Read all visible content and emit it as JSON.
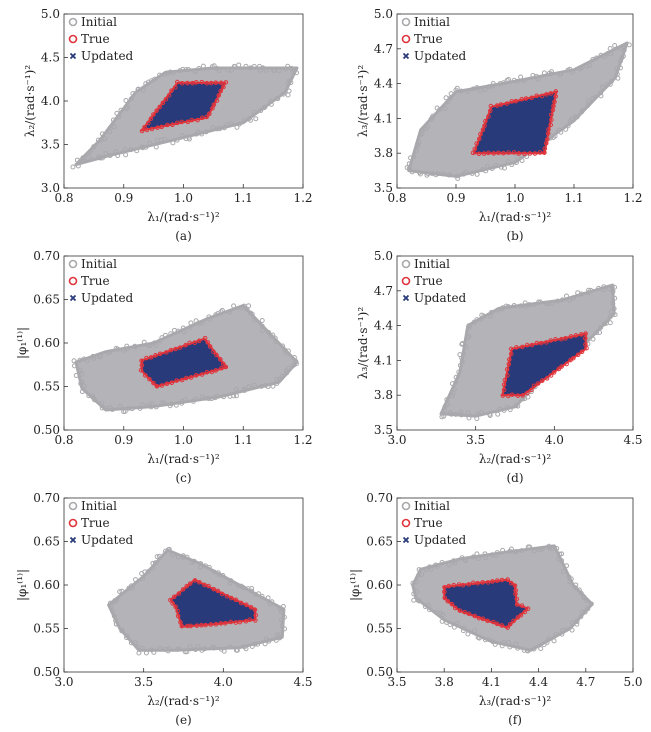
{
  "colors": {
    "initial": "#a9a9ad",
    "true": "#e0343c",
    "updated": "#283a7a",
    "axis": "#333333"
  },
  "legend": [
    "Initial",
    "True",
    "Updated"
  ],
  "chart_data": [
    {
      "type": "scatter",
      "caption": "(a)",
      "xlabel": "λ₁/(rad·s⁻¹)²",
      "ylabel": "λ₂/(rad·s⁻¹)²",
      "xlim": [
        0.8,
        1.2
      ],
      "ylim": [
        3.0,
        5.0
      ],
      "xticks": [
        0.8,
        0.9,
        1.0,
        1.1,
        1.2
      ],
      "yticks": [
        3.0,
        3.5,
        4.0,
        4.5,
        5.0
      ],
      "tick_decimals": [
        1,
        1
      ],
      "initial_region": [
        [
          0.82,
          3.27
        ],
        [
          0.86,
          3.55
        ],
        [
          0.92,
          4.1
        ],
        [
          0.97,
          4.33
        ],
        [
          1.05,
          4.38
        ],
        [
          1.19,
          4.38
        ],
        [
          1.17,
          4.1
        ],
        [
          1.1,
          3.75
        ],
        [
          1.0,
          3.58
        ],
        [
          0.88,
          3.38
        ]
      ],
      "true_region": [
        [
          0.93,
          3.66
        ],
        [
          0.99,
          4.21
        ],
        [
          1.07,
          4.21
        ],
        [
          1.04,
          3.81
        ]
      ]
    },
    {
      "type": "scatter",
      "caption": "(b)",
      "xlabel": "λ₁/(rad·s⁻¹)²",
      "ylabel": "λ₃/(rad·s⁻¹)²",
      "xlim": [
        0.8,
        1.2
      ],
      "ylim": [
        3.5,
        5.0
      ],
      "xticks": [
        0.8,
        0.9,
        1.0,
        1.1,
        1.2
      ],
      "yticks": [
        3.5,
        3.8,
        4.1,
        4.4,
        4.7,
        5.0
      ],
      "tick_decimals": [
        1,
        1
      ],
      "initial_region": [
        [
          0.82,
          3.65
        ],
        [
          0.84,
          4.0
        ],
        [
          0.9,
          4.33
        ],
        [
          1.0,
          4.42
        ],
        [
          1.1,
          4.52
        ],
        [
          1.19,
          4.75
        ],
        [
          1.17,
          4.45
        ],
        [
          1.1,
          4.08
        ],
        [
          1.0,
          3.72
        ],
        [
          0.9,
          3.6
        ]
      ],
      "true_region": [
        [
          0.93,
          3.8
        ],
        [
          0.96,
          4.2
        ],
        [
          1.07,
          4.33
        ],
        [
          1.05,
          3.8
        ]
      ]
    },
    {
      "type": "scatter",
      "caption": "(c)",
      "xlabel": "λ₁/(rad·s⁻¹)²",
      "ylabel": "|φ₁⁽¹⁾|",
      "xlim": [
        0.8,
        1.2
      ],
      "ylim": [
        0.5,
        0.7
      ],
      "xticks": [
        0.8,
        0.9,
        1.0,
        1.1,
        1.2
      ],
      "yticks": [
        0.5,
        0.55,
        0.6,
        0.65,
        0.7
      ],
      "tick_decimals": [
        1,
        2
      ],
      "initial_region": [
        [
          0.82,
          0.578
        ],
        [
          0.87,
          0.59
        ],
        [
          0.95,
          0.6
        ],
        [
          1.04,
          0.628
        ],
        [
          1.1,
          0.643
        ],
        [
          1.19,
          0.578
        ],
        [
          1.16,
          0.555
        ],
        [
          1.06,
          0.538
        ],
        [
          0.95,
          0.527
        ],
        [
          0.87,
          0.523
        ],
        [
          0.83,
          0.548
        ]
      ],
      "true_region": [
        [
          0.93,
          0.58
        ],
        [
          0.93,
          0.568
        ],
        [
          0.955,
          0.55
        ],
        [
          1.072,
          0.572
        ],
        [
          1.035,
          0.605
        ]
      ]
    },
    {
      "type": "scatter",
      "caption": "(d)",
      "xlabel": "λ₂/(rad·s⁻¹)²",
      "ylabel": "λ₃/(rad·s⁻¹)²",
      "xlim": [
        3.0,
        4.5
      ],
      "ylim": [
        3.5,
        5.0
      ],
      "xticks": [
        3.0,
        3.5,
        4.0,
        4.5
      ],
      "yticks": [
        3.5,
        3.8,
        4.1,
        4.4,
        4.7,
        5.0
      ],
      "tick_decimals": [
        1,
        1
      ],
      "initial_region": [
        [
          3.28,
          3.64
        ],
        [
          3.4,
          4.0
        ],
        [
          3.45,
          4.4
        ],
        [
          3.65,
          4.55
        ],
        [
          4.05,
          4.62
        ],
        [
          4.37,
          4.75
        ],
        [
          4.38,
          4.5
        ],
        [
          4.2,
          4.25
        ],
        [
          4.0,
          4.05
        ],
        [
          3.75,
          3.7
        ],
        [
          3.5,
          3.62
        ]
      ],
      "true_region": [
        [
          3.67,
          3.8
        ],
        [
          3.73,
          4.2
        ],
        [
          4.2,
          4.33
        ],
        [
          4.2,
          4.2
        ],
        [
          3.8,
          3.8
        ]
      ]
    },
    {
      "type": "scatter",
      "caption": "(e)",
      "xlabel": "λ₂/(rad·s⁻¹)²",
      "ylabel": "|φ₁⁽¹⁾|",
      "xlim": [
        3.0,
        4.5
      ],
      "ylim": [
        0.5,
        0.7
      ],
      "xticks": [
        3.0,
        3.5,
        4.0,
        4.5
      ],
      "yticks": [
        0.5,
        0.55,
        0.6,
        0.65,
        0.7
      ],
      "tick_decimals": [
        1,
        2
      ],
      "initial_region": [
        [
          3.28,
          0.577
        ],
        [
          3.5,
          0.61
        ],
        [
          3.65,
          0.64
        ],
        [
          3.85,
          0.625
        ],
        [
          4.1,
          0.6
        ],
        [
          4.38,
          0.572
        ],
        [
          4.37,
          0.54
        ],
        [
          4.1,
          0.528
        ],
        [
          3.7,
          0.525
        ],
        [
          3.47,
          0.525
        ],
        [
          3.35,
          0.55
        ]
      ],
      "true_region": [
        [
          3.67,
          0.583
        ],
        [
          3.82,
          0.606
        ],
        [
          4.2,
          0.572
        ],
        [
          4.2,
          0.56
        ],
        [
          3.95,
          0.555
        ],
        [
          3.74,
          0.552
        ],
        [
          3.7,
          0.575
        ]
      ]
    },
    {
      "type": "scatter",
      "caption": "(f)",
      "xlabel": "λ₃/(rad·s⁻¹)²",
      "ylabel": "|φ₁⁽¹⁾|",
      "xlim": [
        3.5,
        5.0
      ],
      "ylim": [
        0.5,
        0.7
      ],
      "xticks": [
        3.5,
        3.8,
        4.1,
        4.4,
        4.7,
        5.0
      ],
      "yticks": [
        0.5,
        0.55,
        0.6,
        0.65,
        0.7
      ],
      "tick_decimals": [
        1,
        2
      ],
      "initial_region": [
        [
          3.6,
          0.6
        ],
        [
          3.65,
          0.618
        ],
        [
          3.9,
          0.63
        ],
        [
          4.2,
          0.638
        ],
        [
          4.5,
          0.645
        ],
        [
          4.62,
          0.6
        ],
        [
          4.74,
          0.578
        ],
        [
          4.6,
          0.55
        ],
        [
          4.35,
          0.525
        ],
        [
          4.1,
          0.535
        ],
        [
          3.8,
          0.56
        ],
        [
          3.62,
          0.585
        ]
      ],
      "true_region": [
        [
          3.8,
          0.598
        ],
        [
          4.2,
          0.606
        ],
        [
          4.25,
          0.6
        ],
        [
          4.26,
          0.578
        ],
        [
          4.33,
          0.573
        ],
        [
          4.2,
          0.551
        ],
        [
          3.9,
          0.57
        ],
        [
          3.8,
          0.585
        ]
      ]
    }
  ]
}
